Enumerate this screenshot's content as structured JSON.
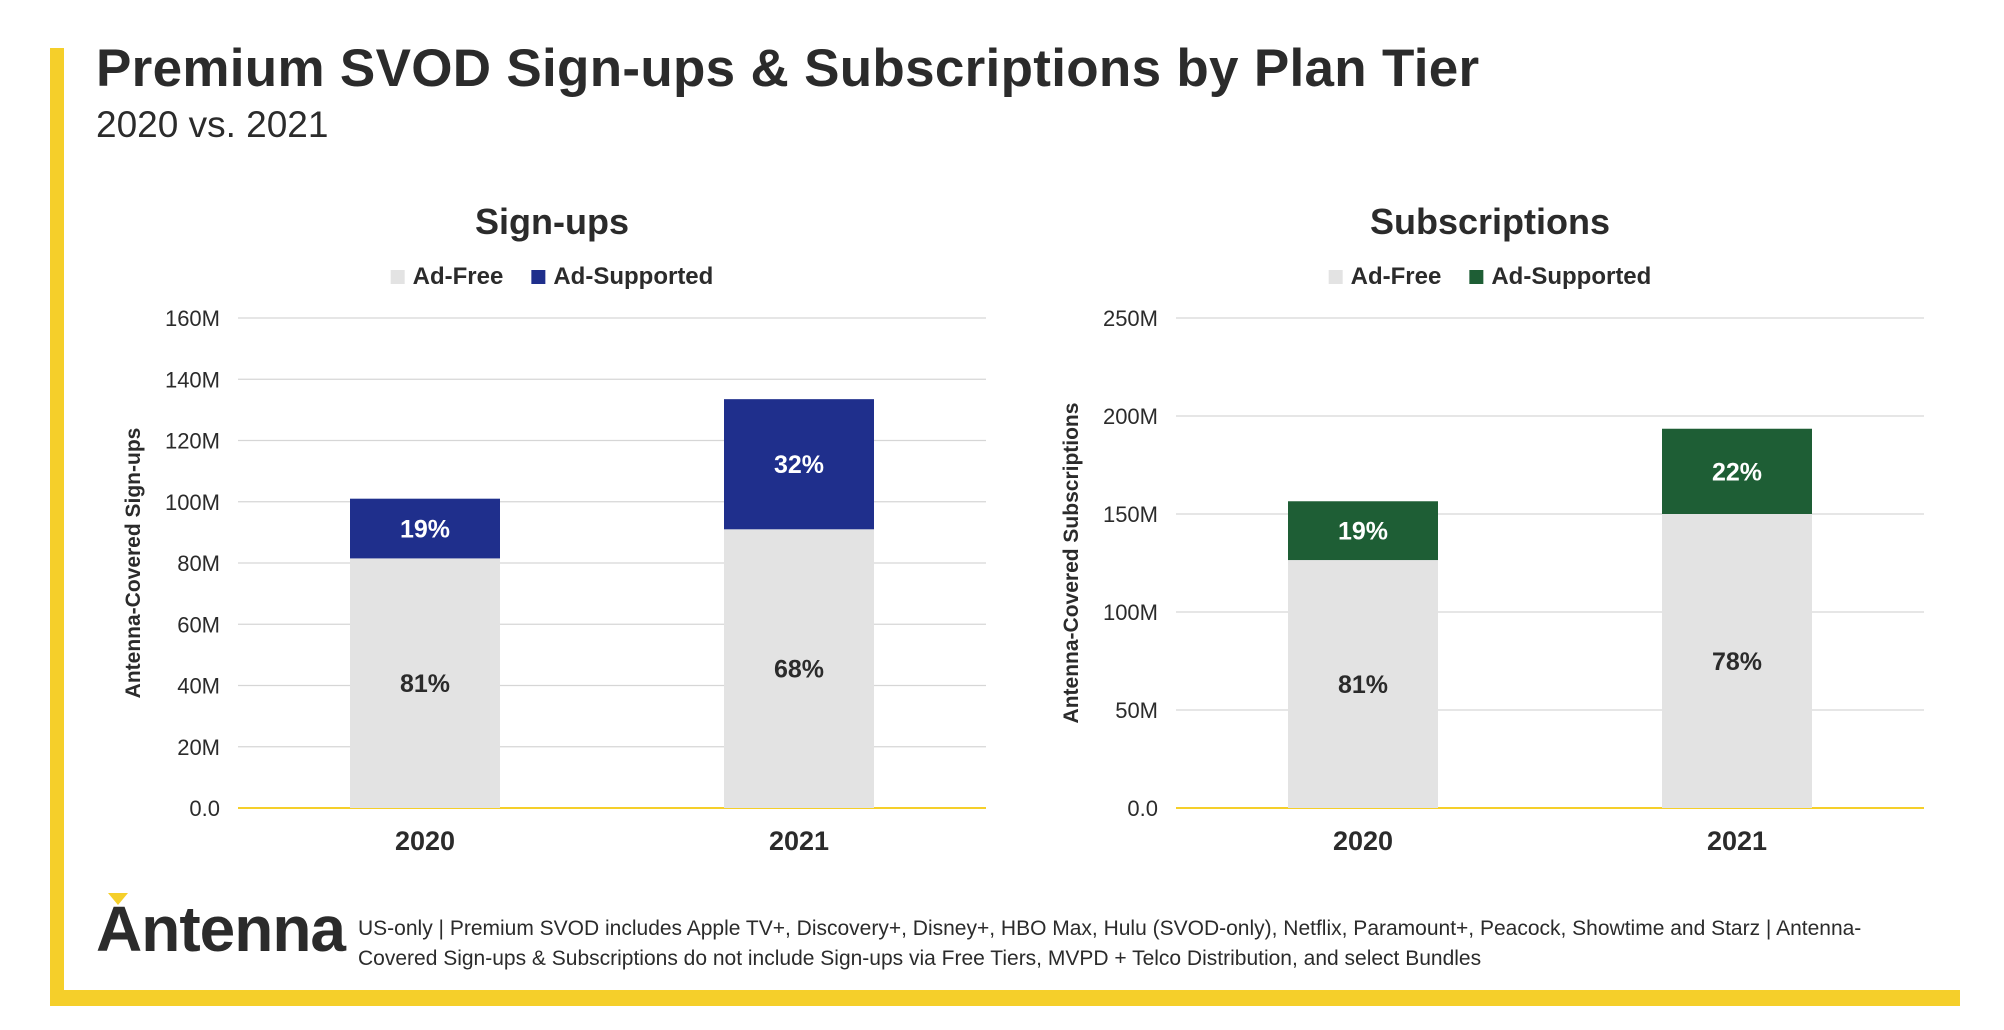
{
  "header": {
    "title": "Premium SVOD Sign-ups & Subscriptions by Plan Tier",
    "subtitle": "2020 vs. 2021"
  },
  "brand": {
    "logo_text": "Antenna",
    "accent_color": "#f5cf2a"
  },
  "footnote": "US-only | Premium SVOD includes Apple TV+, Discovery+, Disney+, HBO Max, Hulu (SVOD-only), Netflix, Paramount+, Peacock, Showtime and Starz | Antenna-Covered Sign-ups & Subscriptions do not include Sign-ups via Free Tiers, MVPD + Telco Distribution, and select Bundles",
  "chart_data": [
    {
      "type": "bar",
      "stacked": true,
      "title": "Sign-ups",
      "xlabel": "",
      "ylabel": "Antenna-Covered Sign-ups",
      "categories": [
        "2020",
        "2021"
      ],
      "ylim": [
        0,
        160
      ],
      "yticks": [
        0,
        20,
        40,
        60,
        80,
        100,
        120,
        140,
        160
      ],
      "ytick_labels": [
        "0.0",
        "20M",
        "40M",
        "60M",
        "80M",
        "100M",
        "120M",
        "140M",
        "160M"
      ],
      "legend_position": "top-center",
      "grid": true,
      "series": [
        {
          "name": "Ad-Free",
          "color": "#e3e3e3",
          "label_color": "#2b2b2b",
          "values": [
            81.5,
            91
          ],
          "labels": [
            "81%",
            "68%"
          ]
        },
        {
          "name": "Ad-Supported",
          "color": "#1f2f8c",
          "label_color": "#ffffff",
          "values": [
            19.5,
            42.5
          ],
          "labels": [
            "19%",
            "32%"
          ]
        }
      ]
    },
    {
      "type": "bar",
      "stacked": true,
      "title": "Subscriptions",
      "xlabel": "",
      "ylabel": "Antenna-Covered Subscriptions",
      "categories": [
        "2020",
        "2021"
      ],
      "ylim": [
        0,
        250
      ],
      "yticks": [
        0,
        50,
        100,
        150,
        200,
        250
      ],
      "ytick_labels": [
        "0.0",
        "50M",
        "100M",
        "150M",
        "200M",
        "250M"
      ],
      "legend_position": "top-center",
      "grid": true,
      "series": [
        {
          "name": "Ad-Free",
          "color": "#e3e3e3",
          "label_color": "#2b2b2b",
          "values": [
            126.5,
            150
          ],
          "labels": [
            "81%",
            "78%"
          ]
        },
        {
          "name": "Ad-Supported",
          "color": "#1e5e35",
          "label_color": "#ffffff",
          "values": [
            30,
            43.5
          ],
          "labels": [
            "19%",
            "22%"
          ]
        }
      ]
    }
  ]
}
